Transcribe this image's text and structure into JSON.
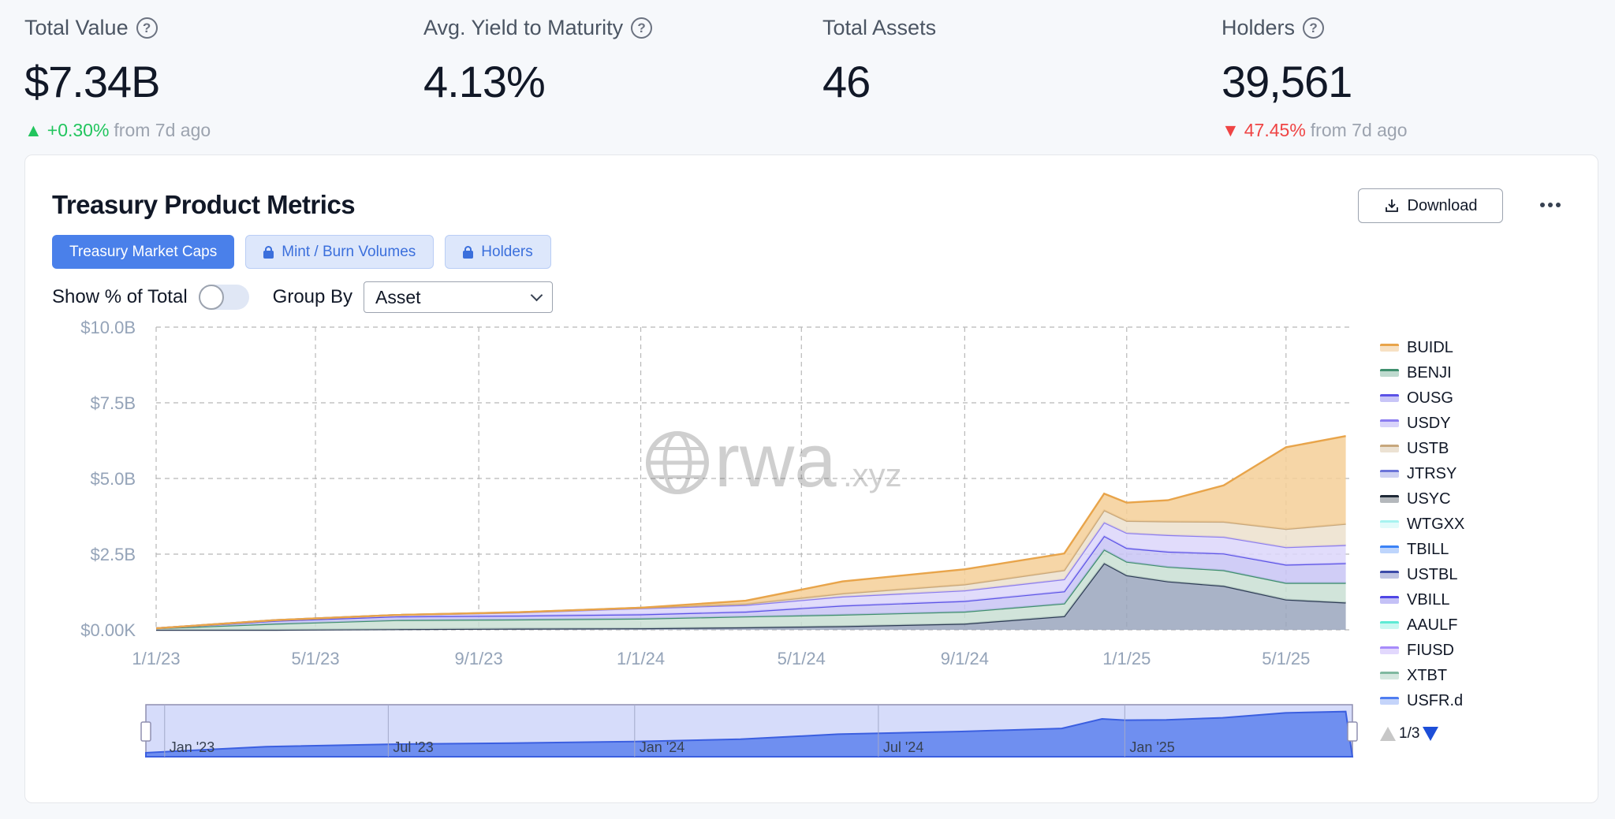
{
  "stats": [
    {
      "label": "Total Value",
      "has_help": true,
      "value": "$7.34B",
      "change": "+0.30%",
      "change_dir": "up",
      "change_suffix": "from 7d ago"
    },
    {
      "label": "Avg. Yield to Maturity",
      "has_help": true,
      "value": "4.13%"
    },
    {
      "label": "Total Assets",
      "has_help": false,
      "value": "46"
    },
    {
      "label": "Holders",
      "has_help": true,
      "value": "39,561",
      "change": "47.45%",
      "change_dir": "down",
      "change_suffix": "from 7d ago"
    }
  ],
  "card": {
    "title": "Treasury Product Metrics",
    "download_label": "Download",
    "tabs": [
      {
        "label": "Treasury Market Caps",
        "active": true,
        "locked": false
      },
      {
        "label": "Mint / Burn Volumes",
        "active": false,
        "locked": true
      },
      {
        "label": "Holders",
        "active": false,
        "locked": true
      }
    ],
    "show_pct_label": "Show % of Total",
    "show_pct_on": false,
    "group_by_label": "Group By",
    "group_by_value": "Asset",
    "pager": "1/3"
  },
  "watermark": {
    "main": "rwa",
    "suffix": ".xyz"
  },
  "colors": {
    "primary": "#4a80ea",
    "up": "#22c55e",
    "down": "#ef4444"
  },
  "chart_data": {
    "type": "area",
    "stacked": true,
    "ylim": [
      0,
      10000000000
    ],
    "yticks": [
      "$0.00K",
      "$2.5B",
      "$5.0B",
      "$7.5B",
      "$10.0B"
    ],
    "ytick_values": [
      0,
      2500000000,
      5000000000,
      7500000000,
      10000000000
    ],
    "xticks": [
      "1/1/23",
      "5/1/23",
      "9/1/23",
      "1/1/24",
      "5/1/24",
      "9/1/24",
      "1/1/25",
      "5/1/25"
    ],
    "xtick_dates": [
      "2023-01-01",
      "2023-05-01",
      "2023-09-01",
      "2024-01-01",
      "2024-05-01",
      "2024-09-01",
      "2025-01-01",
      "2025-05-01"
    ],
    "xlim": [
      "2023-01-01",
      "2025-06-20"
    ],
    "grid": true,
    "legend_position": "right",
    "x": [
      "2023-01-01",
      "2023-04-01",
      "2023-07-01",
      "2023-10-01",
      "2024-01-01",
      "2024-03-20",
      "2024-06-01",
      "2024-09-01",
      "2024-11-15",
      "2024-12-15",
      "2025-01-01",
      "2025-02-01",
      "2025-03-15",
      "2025-05-01",
      "2025-06-15"
    ],
    "series": [
      {
        "name": "USYC",
        "color": "#2d3b55",
        "fill": "#9aa6bd",
        "values": [
          0,
          0,
          0.02,
          0.04,
          0.05,
          0.08,
          0.12,
          0.2,
          0.45,
          2.2,
          1.8,
          1.6,
          1.45,
          1.0,
          0.9
        ]
      },
      {
        "name": "BENJI",
        "color": "#3f8f6e",
        "fill": "#c9dfd4",
        "values": [
          0.05,
          0.2,
          0.3,
          0.3,
          0.32,
          0.36,
          0.38,
          0.4,
          0.42,
          0.45,
          0.45,
          0.48,
          0.52,
          0.55,
          0.65
        ]
      },
      {
        "name": "OUSG",
        "color": "#5b52e6",
        "fill": "#c8c4f4",
        "values": [
          0,
          0.1,
          0.12,
          0.13,
          0.14,
          0.16,
          0.3,
          0.35,
          0.4,
          0.45,
          0.45,
          0.5,
          0.55,
          0.6,
          0.65
        ]
      },
      {
        "name": "USDY",
        "color": "#8b7cf0",
        "fill": "#dcd6fa",
        "values": [
          0,
          0.02,
          0.05,
          0.1,
          0.2,
          0.22,
          0.3,
          0.35,
          0.4,
          0.45,
          0.5,
          0.55,
          0.55,
          0.58,
          0.6
        ]
      },
      {
        "name": "USTB",
        "color": "#c7a77c",
        "fill": "#ece0cc",
        "values": [
          0,
          0,
          0,
          0.01,
          0.02,
          0.04,
          0.1,
          0.2,
          0.3,
          0.4,
          0.4,
          0.45,
          0.5,
          0.6,
          0.7
        ]
      },
      {
        "name": "BUIDL",
        "color": "#e8a44a",
        "fill": "#f5cf98",
        "values": [
          0,
          0,
          0,
          0,
          0,
          0.1,
          0.4,
          0.5,
          0.55,
          0.55,
          0.6,
          0.7,
          1.2,
          2.7,
          2.9
        ]
      }
    ],
    "value_unit_note": "values in billions USD"
  }
}
